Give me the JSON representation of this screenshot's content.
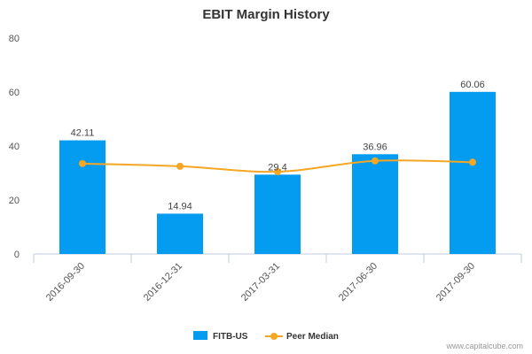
{
  "chart_data": {
    "type": "bar",
    "title": "EBIT Margin History",
    "categories": [
      "2016-09-30",
      "2016-12-31",
      "2017-03-31",
      "2017-06-30",
      "2017-09-30"
    ],
    "series": [
      {
        "name": "FITB-US",
        "type": "bar",
        "values": [
          42.11,
          14.94,
          29.4,
          36.96,
          60.06
        ],
        "data_labels": [
          "42.11",
          "14.94",
          "29.4",
          "36.96",
          "60.06"
        ],
        "color": "#049cf0"
      },
      {
        "name": "Peer Median",
        "type": "line",
        "values": [
          33.5,
          32.5,
          30.5,
          34.5,
          34.0
        ],
        "color": "#f5a623"
      }
    ],
    "yticks": [
      "0",
      "20",
      "40",
      "60",
      "80"
    ],
    "ylim": [
      0,
      80
    ],
    "xlabel": "",
    "ylabel": "",
    "grid": false,
    "legend_position": "bottom-center"
  },
  "credit": "www.capitalcube.com"
}
